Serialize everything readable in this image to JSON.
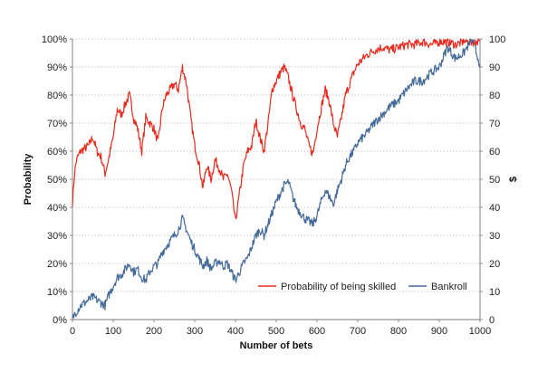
{
  "chart_data": {
    "type": "line",
    "title": "",
    "xlabel": "Number of bets",
    "ylabel_left": "Probability",
    "ylabel_right": "$",
    "xlim": [
      0,
      1000
    ],
    "ylim_left": [
      0,
      100
    ],
    "ylim_right": [
      0,
      100
    ],
    "x_ticks": [
      "0",
      "100",
      "200",
      "300",
      "400",
      "500",
      "600",
      "700",
      "800",
      "900",
      "1000"
    ],
    "y_left_ticks": [
      "0%",
      "10%",
      "20%",
      "30%",
      "40%",
      "50%",
      "60%",
      "70%",
      "80%",
      "90%",
      "100%"
    ],
    "y_right_ticks": [
      "0",
      "10",
      "20",
      "30",
      "40",
      "50",
      "60",
      "70",
      "80",
      "90",
      "100"
    ],
    "grid": true,
    "legend_position": "bottom-right",
    "series": [
      {
        "name": "Probability of being skilled",
        "color": "#e8291c",
        "axis": "left",
        "x": [
          0,
          5,
          10,
          20,
          30,
          40,
          50,
          60,
          70,
          80,
          90,
          100,
          110,
          120,
          130,
          140,
          150,
          160,
          170,
          180,
          190,
          200,
          210,
          220,
          230,
          240,
          250,
          260,
          270,
          280,
          290,
          300,
          310,
          320,
          330,
          340,
          350,
          360,
          370,
          380,
          390,
          400,
          410,
          420,
          430,
          440,
          450,
          460,
          470,
          480,
          490,
          500,
          510,
          520,
          530,
          540,
          550,
          560,
          570,
          580,
          590,
          600,
          610,
          620,
          630,
          640,
          650,
          660,
          670,
          680,
          690,
          700,
          720,
          740,
          760,
          780,
          800,
          820,
          840,
          860,
          880,
          900,
          920,
          940,
          960,
          980,
          1000
        ],
        "y": [
          42,
          52,
          57,
          60,
          61,
          62,
          65,
          60,
          58,
          52,
          58,
          65,
          75,
          73,
          77,
          80,
          72,
          68,
          60,
          72,
          70,
          68,
          63,
          75,
          80,
          82,
          84,
          82,
          90,
          84,
          72,
          62,
          56,
          47,
          55,
          50,
          57,
          54,
          50,
          52,
          46,
          35,
          45,
          55,
          60,
          62,
          71,
          65,
          60,
          70,
          82,
          85,
          88,
          90,
          86,
          80,
          75,
          70,
          68,
          62,
          59,
          68,
          75,
          82,
          78,
          70,
          65,
          72,
          80,
          84,
          88,
          91,
          94,
          96,
          97,
          96,
          97,
          98,
          98,
          99,
          98,
          99,
          99,
          98,
          99,
          99,
          99
        ]
      },
      {
        "name": "Bankroll",
        "color": "#436a98",
        "axis": "right",
        "x": [
          0,
          5,
          10,
          20,
          30,
          40,
          50,
          60,
          70,
          80,
          90,
          100,
          110,
          120,
          130,
          140,
          150,
          160,
          170,
          180,
          190,
          200,
          210,
          220,
          230,
          240,
          250,
          260,
          270,
          280,
          290,
          300,
          310,
          320,
          330,
          340,
          350,
          360,
          370,
          380,
          390,
          400,
          410,
          420,
          430,
          440,
          450,
          460,
          470,
          480,
          490,
          500,
          510,
          520,
          530,
          540,
          550,
          560,
          570,
          580,
          590,
          600,
          610,
          620,
          630,
          640,
          650,
          660,
          670,
          680,
          690,
          700,
          720,
          740,
          760,
          780,
          800,
          820,
          840,
          860,
          880,
          900,
          920,
          940,
          960,
          980,
          1000
        ],
        "y": [
          0,
          2,
          3,
          5,
          6,
          7,
          8,
          7,
          6,
          5,
          9,
          12,
          15,
          16,
          18,
          20,
          17,
          18,
          15,
          14,
          17,
          19,
          20,
          24,
          26,
          28,
          30,
          32,
          36,
          32,
          28,
          25,
          22,
          19,
          21,
          18,
          20,
          21,
          19,
          20,
          17,
          14,
          17,
          20,
          22,
          26,
          30,
          32,
          30,
          34,
          38,
          42,
          45,
          48,
          49,
          44,
          40,
          38,
          36,
          35,
          34,
          37,
          42,
          46,
          44,
          41,
          46,
          50,
          55,
          58,
          60,
          63,
          66,
          70,
          73,
          76,
          78,
          82,
          85,
          85,
          88,
          90,
          97,
          93,
          95,
          100,
          91
        ]
      }
    ]
  }
}
